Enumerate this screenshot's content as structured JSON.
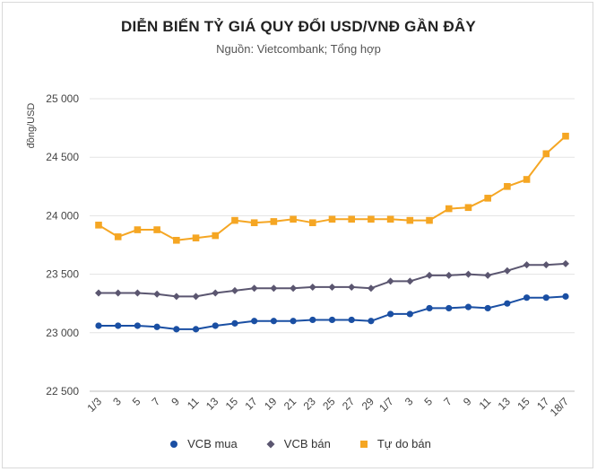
{
  "chart_data": {
    "type": "line",
    "title": "DIỄN BIẾN TỶ GIÁ QUY ĐỔI USD/VNĐ GẦN ĐÂY",
    "subtitle": "Nguồn: Vietcombank; Tổng hợp",
    "ylabel": "đồng/USD",
    "ylim": [
      22500,
      25000
    ],
    "yticks": [
      22500,
      23000,
      23500,
      24000,
      24500,
      25000
    ],
    "ytick_labels": [
      "22 500",
      "23 000",
      "23 500",
      "24 000",
      "24 500",
      "25 000"
    ],
    "grid": true,
    "legend_position": "bottom",
    "x": [
      "1/3",
      "3",
      "5",
      "7",
      "9",
      "11",
      "13",
      "15",
      "17",
      "19",
      "21",
      "23",
      "25",
      "27",
      "29",
      "1/7",
      "3",
      "5",
      "7",
      "9",
      "11",
      "13",
      "15",
      "17",
      "18/7"
    ],
    "series": [
      {
        "name": "VCB mua",
        "color": "#1a4fa3",
        "marker": "circle",
        "values": [
          23060,
          23060,
          23060,
          23050,
          23030,
          23030,
          23060,
          23080,
          23100,
          23100,
          23100,
          23110,
          23110,
          23110,
          23100,
          23160,
          23160,
          23210,
          23210,
          23220,
          23210,
          23250,
          23300,
          23300,
          23310
        ]
      },
      {
        "name": "VCB bán",
        "color": "#5b5670",
        "marker": "diamond",
        "values": [
          23340,
          23340,
          23340,
          23330,
          23310,
          23310,
          23340,
          23360,
          23380,
          23380,
          23380,
          23390,
          23390,
          23390,
          23380,
          23440,
          23440,
          23490,
          23490,
          23500,
          23490,
          23530,
          23580,
          23580,
          23590
        ]
      },
      {
        "name": "Tự do bán",
        "color": "#f5a623",
        "marker": "square",
        "values": [
          23920,
          23820,
          23880,
          23880,
          23790,
          23810,
          23830,
          23960,
          23940,
          23950,
          23970,
          23940,
          23970,
          23970,
          23970,
          23970,
          23960,
          23960,
          24060,
          24070,
          24150,
          24250,
          24310,
          24530,
          24680
        ]
      }
    ]
  }
}
